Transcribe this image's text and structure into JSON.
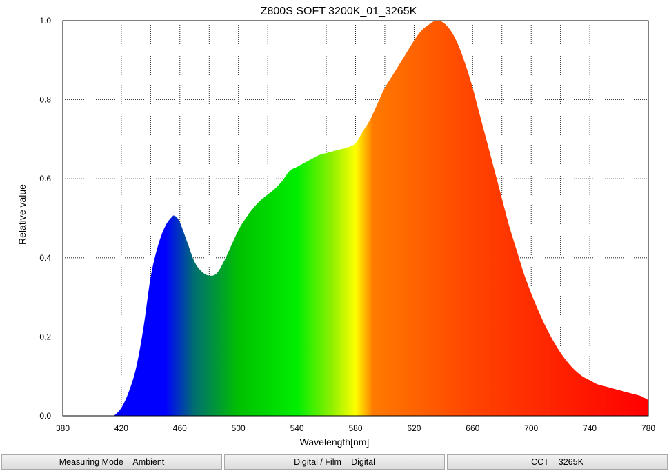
{
  "chart_data": {
    "type": "area",
    "title": "Z800S SOFT 3200K_01_3265K",
    "xlabel": "Wavelength[nm]",
    "ylabel": "Relative value",
    "xlim": [
      380,
      780
    ],
    "ylim": [
      0,
      1.0
    ],
    "x_ticks": [
      380,
      420,
      460,
      500,
      540,
      580,
      620,
      660,
      700,
      740,
      780
    ],
    "y_ticks": [
      "0.0",
      "0.2",
      "0.4",
      "0.6",
      "0.8",
      "1.0"
    ],
    "grid": true,
    "series": [
      {
        "x": [
          415,
          420,
          425,
          430,
          435,
          440,
          445,
          450,
          455,
          457,
          460,
          465,
          470,
          475,
          480,
          485,
          490,
          495,
          500,
          505,
          510,
          515,
          520,
          525,
          530,
          535,
          540,
          545,
          550,
          555,
          560,
          565,
          570,
          575,
          580,
          585,
          590,
          595,
          600,
          605,
          610,
          615,
          620,
          625,
          630,
          635,
          640,
          645,
          650,
          655,
          660,
          665,
          670,
          675,
          680,
          685,
          690,
          695,
          700,
          705,
          710,
          715,
          720,
          725,
          730,
          735,
          740,
          745,
          750,
          755,
          760,
          765,
          770,
          775,
          780
        ],
        "y": [
          0.0,
          0.02,
          0.06,
          0.12,
          0.22,
          0.35,
          0.43,
          0.48,
          0.505,
          0.505,
          0.49,
          0.44,
          0.39,
          0.365,
          0.355,
          0.36,
          0.39,
          0.43,
          0.47,
          0.5,
          0.525,
          0.545,
          0.56,
          0.575,
          0.595,
          0.62,
          0.63,
          0.64,
          0.65,
          0.66,
          0.665,
          0.67,
          0.675,
          0.68,
          0.69,
          0.72,
          0.75,
          0.79,
          0.83,
          0.86,
          0.89,
          0.92,
          0.95,
          0.975,
          0.99,
          1.0,
          0.995,
          0.975,
          0.94,
          0.89,
          0.83,
          0.76,
          0.69,
          0.62,
          0.55,
          0.48,
          0.42,
          0.36,
          0.31,
          0.265,
          0.225,
          0.19,
          0.16,
          0.135,
          0.115,
          0.1,
          0.09,
          0.08,
          0.075,
          0.07,
          0.065,
          0.06,
          0.055,
          0.05,
          0.04
        ]
      }
    ]
  },
  "status_bar": {
    "measuring_mode": "Measuring Mode = Ambient",
    "digital_film": "Digital / Film = Digital",
    "cct": "CCT = 3265K"
  }
}
